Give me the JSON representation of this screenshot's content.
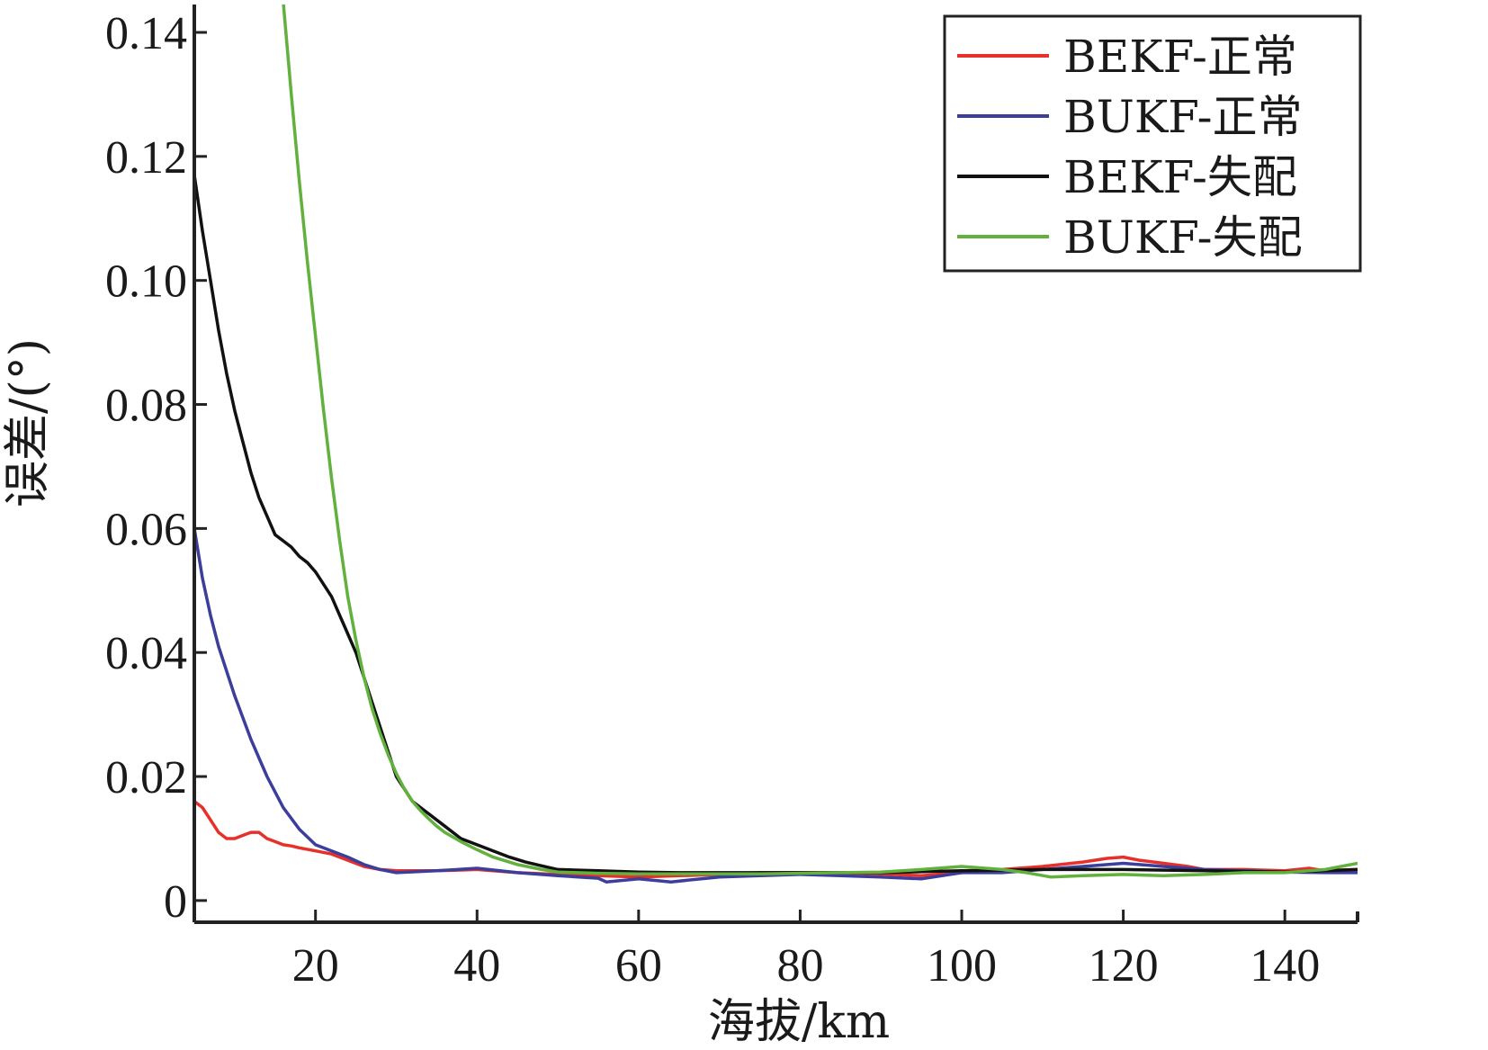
{
  "chart_data": {
    "type": "line",
    "xlabel": "海拔/km",
    "ylabel": "误差/(°)",
    "xlim": [
      5,
      149
    ],
    "ylim": [
      -0.0035,
      0.1445
    ],
    "xticks": [
      20,
      40,
      60,
      80,
      100,
      120,
      140
    ],
    "xtick_labels": [
      "20",
      "40",
      "60",
      "80",
      "100",
      "120",
      "140"
    ],
    "yticks": [
      0,
      0.02,
      0.04,
      0.06,
      0.08,
      0.1,
      0.12,
      0.14
    ],
    "ytick_labels": [
      "0",
      "0.02",
      "0.04",
      "0.06",
      "0.08",
      "0.10",
      "0.12",
      "0.14"
    ],
    "grid": false,
    "legend_position": "top-right",
    "series": [
      {
        "name": "BEKF-正常",
        "color": "#e8302a",
        "x": [
          5,
          6,
          7,
          8,
          9,
          10,
          11,
          12,
          13,
          14,
          15,
          16,
          17,
          18,
          20,
          22,
          24,
          26,
          28,
          30,
          35,
          40,
          45,
          50,
          55,
          60,
          65,
          70,
          75,
          80,
          85,
          90,
          95,
          100,
          105,
          110,
          115,
          118,
          120,
          122,
          125,
          128,
          130,
          135,
          140,
          143,
          145,
          149
        ],
        "y": [
          0.016,
          0.015,
          0.013,
          0.011,
          0.01,
          0.01,
          0.0105,
          0.011,
          0.011,
          0.01,
          0.0095,
          0.009,
          0.0088,
          0.0085,
          0.008,
          0.0075,
          0.0065,
          0.0055,
          0.005,
          0.0048,
          0.0048,
          0.005,
          0.0045,
          0.0042,
          0.004,
          0.0038,
          0.004,
          0.0042,
          0.0045,
          0.0045,
          0.0045,
          0.0043,
          0.004,
          0.0045,
          0.005,
          0.0055,
          0.0062,
          0.0068,
          0.007,
          0.0065,
          0.006,
          0.0055,
          0.005,
          0.005,
          0.0048,
          0.0052,
          0.0048,
          0.005
        ]
      },
      {
        "name": "BUKF-正常",
        "color": "#3b3e9a",
        "x": [
          5,
          6,
          7,
          8,
          9,
          10,
          12,
          14,
          16,
          18,
          20,
          22,
          24,
          26,
          28,
          30,
          35,
          40,
          45,
          50,
          55,
          56,
          60,
          64,
          70,
          75,
          80,
          85,
          90,
          95,
          100,
          105,
          110,
          115,
          120,
          125,
          130,
          135,
          140,
          145,
          149
        ],
        "y": [
          0.06,
          0.052,
          0.046,
          0.041,
          0.037,
          0.033,
          0.026,
          0.02,
          0.015,
          0.0115,
          0.009,
          0.008,
          0.007,
          0.0058,
          0.005,
          0.0045,
          0.0048,
          0.0052,
          0.0045,
          0.004,
          0.0036,
          0.003,
          0.0035,
          0.003,
          0.0038,
          0.004,
          0.0042,
          0.004,
          0.0038,
          0.0035,
          0.0045,
          0.0045,
          0.005,
          0.0055,
          0.006,
          0.0055,
          0.005,
          0.0048,
          0.0046,
          0.0045,
          0.0045
        ]
      },
      {
        "name": "BEKF-失配",
        "color": "#111111",
        "x": [
          5,
          6,
          7,
          8,
          9,
          10,
          11,
          12,
          13,
          14,
          15,
          16,
          17,
          18,
          19,
          20,
          21,
          22,
          23,
          24,
          25,
          26,
          27,
          28,
          29,
          30,
          32,
          34,
          36,
          38,
          40,
          42,
          44,
          46,
          48,
          50,
          55,
          60,
          65,
          70,
          80,
          90,
          100,
          110,
          120,
          130,
          140,
          149
        ],
        "y": [
          0.117,
          0.108,
          0.1,
          0.092,
          0.085,
          0.079,
          0.074,
          0.069,
          0.065,
          0.062,
          0.059,
          0.058,
          0.057,
          0.0555,
          0.0545,
          0.053,
          0.051,
          0.049,
          0.046,
          0.043,
          0.04,
          0.036,
          0.032,
          0.028,
          0.024,
          0.02,
          0.016,
          0.014,
          0.012,
          0.01,
          0.009,
          0.008,
          0.007,
          0.0062,
          0.0056,
          0.005,
          0.0048,
          0.0046,
          0.0045,
          0.0045,
          0.0045,
          0.0045,
          0.0048,
          0.005,
          0.005,
          0.0048,
          0.0046,
          0.005
        ]
      },
      {
        "name": "BUKF-失配",
        "color": "#62b13c",
        "x": [
          16,
          17,
          18,
          19,
          20,
          21,
          22,
          23,
          24,
          25,
          26,
          27,
          28,
          29,
          30,
          31,
          32,
          33,
          34,
          35,
          36,
          38,
          40,
          42,
          45,
          48,
          50,
          55,
          60,
          65,
          70,
          75,
          80,
          85,
          90,
          95,
          100,
          105,
          108,
          111,
          115,
          120,
          125,
          130,
          135,
          140,
          145,
          149
        ],
        "y": [
          0.145,
          0.13,
          0.116,
          0.103,
          0.091,
          0.079,
          0.068,
          0.058,
          0.049,
          0.042,
          0.036,
          0.031,
          0.027,
          0.0235,
          0.0205,
          0.018,
          0.016,
          0.0145,
          0.0132,
          0.012,
          0.011,
          0.0095,
          0.0082,
          0.007,
          0.0058,
          0.005,
          0.0046,
          0.0044,
          0.0043,
          0.0043,
          0.0043,
          0.0043,
          0.0044,
          0.0045,
          0.0046,
          0.005,
          0.0055,
          0.005,
          0.0045,
          0.0038,
          0.004,
          0.0042,
          0.004,
          0.0042,
          0.0045,
          0.0045,
          0.005,
          0.006
        ]
      }
    ]
  }
}
